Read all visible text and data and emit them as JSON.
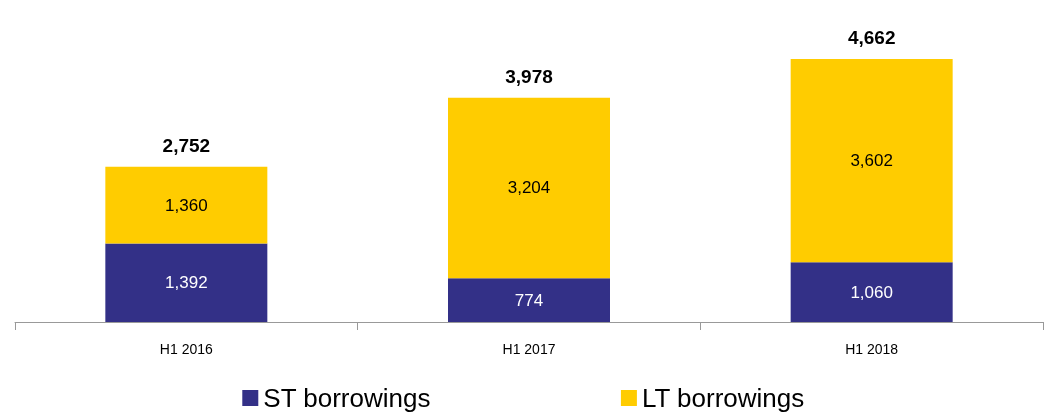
{
  "chart_data": {
    "type": "bar",
    "stacked": true,
    "categories": [
      "H1 2016",
      "H1 2017",
      "H1 2018"
    ],
    "series": [
      {
        "name": "ST borrowings",
        "color": "#333087",
        "values": [
          1392,
          774,
          1060
        ],
        "value_labels": [
          "1,392",
          "774",
          "1,060"
        ]
      },
      {
        "name": "LT borrowings",
        "color": "#ffcc00",
        "values": [
          1360,
          3204,
          3602
        ],
        "value_labels": [
          "1,360",
          "3,204",
          "3,602"
        ]
      }
    ],
    "totals": [
      "2,752",
      "3,978",
      "4,662"
    ],
    "legend": "bottom"
  }
}
